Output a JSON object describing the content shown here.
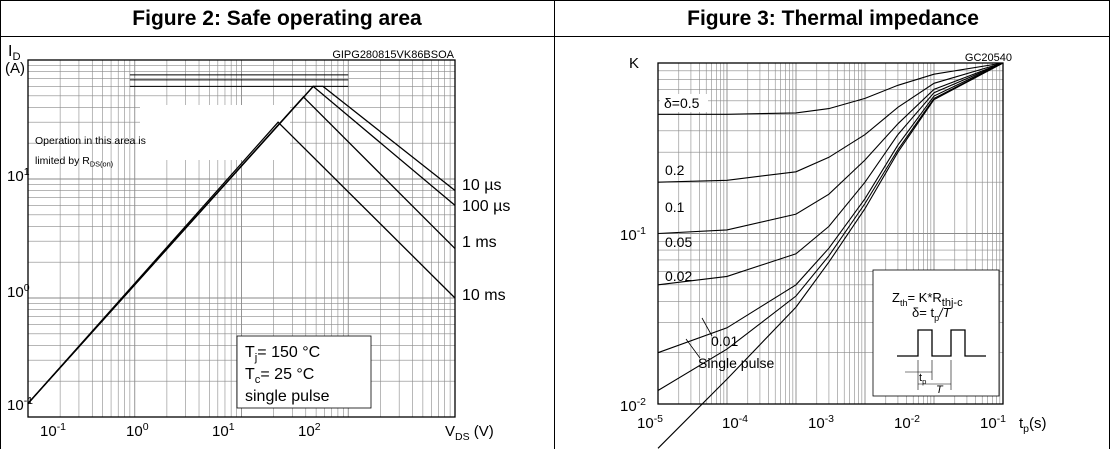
{
  "figure_left": {
    "title": "Figure 2: Safe operating area",
    "code": "GIPG280815VK86BSOA",
    "annotation_lines": [
      "Operation in this area is",
      "limited by R",
      "DS(on)"
    ],
    "legend_lines": [
      {
        "base": "T",
        "sub": "j",
        "rest": "= 150 °C"
      },
      {
        "base": "T",
        "sub": "c",
        "rest": "= 25 °C"
      },
      {
        "base": "single pulse",
        "sub": "",
        "rest": ""
      }
    ]
  },
  "figure_right": {
    "title": "Figure 3: Thermal impedance",
    "code": "GC20540",
    "formula_line1": {
      "base": "Z",
      "sub": "th",
      "mid": "= K*R",
      "sub2": "thj-c"
    },
    "formula_line2": {
      "base": "δ= t",
      "sub": "p",
      "rest": "/T"
    },
    "pulse_labels": {
      "tp": "t",
      "tp_sub": "p",
      "T": "T"
    }
  },
  "chart_data": [
    {
      "type": "line",
      "title": "Figure 2: Safe operating area",
      "xlabel": {
        "base": "V",
        "sub": "DS",
        "rest": " (V)"
      },
      "ylabel": {
        "base": "I",
        "sub": "D",
        "line2": "(A)"
      },
      "xscale": "log",
      "yscale": "log",
      "xlim": [
        0.1,
        1000
      ],
      "ylim": [
        0.1,
        100
      ],
      "grid": true,
      "x_ticks": [
        {
          "base": "10",
          "exp": "-1"
        },
        {
          "base": "10",
          "exp": "0"
        },
        {
          "base": "10",
          "exp": "1"
        },
        {
          "base": "10",
          "exp": "2"
        }
      ],
      "y_ticks": [
        {
          "base": "10",
          "exp": "-1"
        },
        {
          "base": "10",
          "exp": "0"
        },
        {
          "base": "10",
          "exp": "1"
        }
      ],
      "series": [
        {
          "name": "10 µs",
          "points": [
            [
              0.1,
              0.13
            ],
            [
              47,
              60
            ],
            [
              58,
              60
            ],
            [
              58,
              60
            ],
            [
              1000,
              8.0
            ]
          ]
        },
        {
          "name": "100 µs",
          "points": [
            [
              0.1,
              0.13
            ],
            [
              47,
              60
            ],
            [
              1000,
              6.0
            ]
          ]
        },
        {
          "name": "1 ms",
          "points": [
            [
              0.1,
              0.13
            ],
            [
              38,
              49
            ],
            [
              1000,
              2.6
            ]
          ]
        },
        {
          "name": "10 ms",
          "points": [
            [
              0.1,
              0.13
            ],
            [
              22,
              30
            ],
            [
              1000,
              1.0
            ]
          ]
        }
      ],
      "limit_lines": [
        {
          "y": 75,
          "x": [
            0.9,
            100
          ]
        },
        {
          "y": 68,
          "x": [
            0.9,
            100
          ]
        },
        {
          "y": 60,
          "x": [
            0.9,
            100
          ]
        }
      ],
      "curve_labels": [
        "10 µs",
        "100 µs",
        "1 ms",
        "10 ms"
      ]
    },
    {
      "type": "line",
      "title": "Figure 3: Thermal impedance",
      "xlabel": {
        "base": "t",
        "sub": "p",
        "rest": "(s)"
      },
      "ylabel": "K",
      "xscale": "log",
      "yscale": "log",
      "xlim": [
        1e-05,
        1
      ],
      "ylim": [
        0.01,
        1
      ],
      "grid": true,
      "x_ticks": [
        {
          "base": "10",
          "exp": "-5"
        },
        {
          "base": "10",
          "exp": "-4"
        },
        {
          "base": "10",
          "exp": "-3"
        },
        {
          "base": "10",
          "exp": "-2"
        },
        {
          "base": "10",
          "exp": "-1"
        }
      ],
      "y_ticks": [
        {
          "base": "10",
          "exp": "-2"
        },
        {
          "base": "10",
          "exp": "-1"
        }
      ],
      "series": [
        {
          "name": "δ=0.5",
          "points": [
            [
              1e-05,
              0.5
            ],
            [
              0.0001,
              0.5
            ],
            [
              0.001,
              0.51
            ],
            [
              0.003,
              0.54
            ],
            [
              0.01,
              0.62
            ],
            [
              0.03,
              0.74
            ],
            [
              0.1,
              0.86
            ],
            [
              1,
              1
            ]
          ]
        },
        {
          "name": "0.2",
          "points": [
            [
              1e-05,
              0.2
            ],
            [
              0.0001,
              0.205
            ],
            [
              0.001,
              0.23
            ],
            [
              0.003,
              0.28
            ],
            [
              0.01,
              0.38
            ],
            [
              0.03,
              0.55
            ],
            [
              0.1,
              0.76
            ],
            [
              1,
              1
            ]
          ]
        },
        {
          "name": "0.1",
          "points": [
            [
              1e-05,
              0.1
            ],
            [
              0.0001,
              0.105
            ],
            [
              0.001,
              0.13
            ],
            [
              0.003,
              0.17
            ],
            [
              0.01,
              0.27
            ],
            [
              0.03,
              0.44
            ],
            [
              0.1,
              0.7
            ],
            [
              1,
              1
            ]
          ]
        },
        {
          "name": "0.05",
          "points": [
            [
              1e-05,
              0.05
            ],
            [
              0.0001,
              0.056
            ],
            [
              0.001,
              0.076
            ],
            [
              0.003,
              0.11
            ],
            [
              0.01,
              0.2
            ],
            [
              0.03,
              0.38
            ],
            [
              0.1,
              0.67
            ],
            [
              1,
              1
            ]
          ]
        },
        {
          "name": "0.02",
          "points": [
            [
              1e-05,
              0.02
            ],
            [
              0.0001,
              0.028
            ],
            [
              0.001,
              0.05
            ],
            [
              0.003,
              0.082
            ],
            [
              0.01,
              0.16
            ],
            [
              0.03,
              0.33
            ],
            [
              0.1,
              0.64
            ],
            [
              1,
              1
            ]
          ]
        },
        {
          "name": "0.01",
          "points": [
            [
              1e-05,
              0.012
            ],
            [
              0.0001,
              0.021
            ],
            [
              0.001,
              0.043
            ],
            [
              0.003,
              0.074
            ],
            [
              0.01,
              0.15
            ],
            [
              0.03,
              0.31
            ],
            [
              0.1,
              0.62
            ],
            [
              1,
              1
            ]
          ]
        },
        {
          "name": "Single pulse",
          "points": [
            [
              1e-05,
              0.0055
            ],
            [
              0.0001,
              0.014
            ],
            [
              0.001,
              0.037
            ],
            [
              0.003,
              0.068
            ],
            [
              0.01,
              0.14
            ],
            [
              0.03,
              0.3
            ],
            [
              0.1,
              0.61
            ],
            [
              1,
              1
            ]
          ]
        }
      ],
      "curve_labels": [
        "δ=0.5",
        "0.2",
        "0.1",
        "0.05",
        "0.02",
        "0.01",
        "Single pulse"
      ]
    }
  ]
}
